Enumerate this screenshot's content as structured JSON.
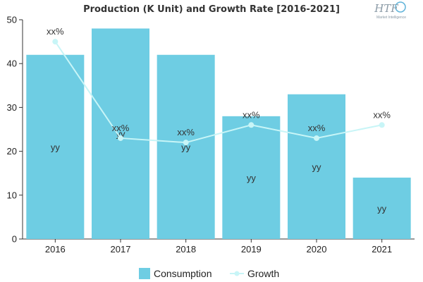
{
  "logo": {
    "mark": "HTF",
    "sub": "Market Intelligence"
  },
  "colors": {
    "bar": "#6ecde3",
    "line": "#c8f5f7",
    "axis": "#333333",
    "text": "#222222"
  },
  "chart_data": {
    "type": "bar",
    "title": "Production (K Unit) and Growth Rate [2016-2021]",
    "categories": [
      "2016",
      "2017",
      "2018",
      "2019",
      "2020",
      "2021"
    ],
    "ylim": [
      0,
      50
    ],
    "yticks": [
      0,
      10,
      20,
      30,
      40,
      50
    ],
    "legend_position": "bottom",
    "grid": false,
    "series": [
      {
        "name": "Consumption",
        "type": "bar",
        "values": [
          42,
          48,
          42,
          28,
          33,
          14
        ],
        "labels": [
          "yy",
          "yy",
          "yy",
          "yy",
          "yy",
          "yy"
        ]
      },
      {
        "name": "Growth",
        "type": "line",
        "values": [
          45,
          23,
          22,
          26,
          23,
          26
        ],
        "labels": [
          "xx%",
          "xx%",
          "xx%",
          "xx%",
          "xx%",
          "xx%"
        ]
      }
    ]
  }
}
